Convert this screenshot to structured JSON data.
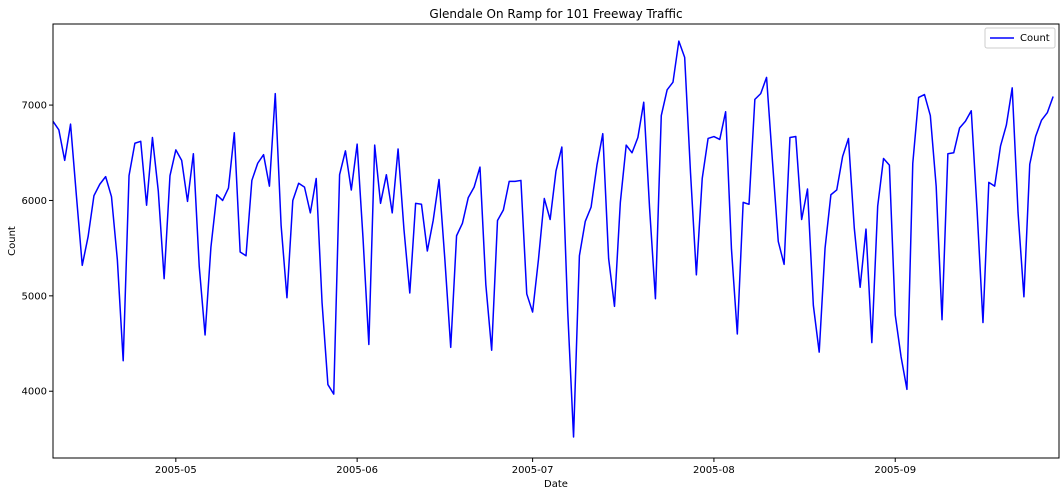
{
  "chart_data": {
    "type": "line",
    "title": "Glendale On Ramp for 101 Freeway Traffic",
    "xlabel": "Date",
    "ylabel": "Count",
    "x_start": "2005-04-10",
    "x_range_days": [
      0,
      172
    ],
    "ylim": [
      3300,
      7850
    ],
    "xticks": [
      {
        "label": "2005-05",
        "day": 21
      },
      {
        "label": "2005-06",
        "day": 52
      },
      {
        "label": "2005-07",
        "day": 82
      },
      {
        "label": "2005-08",
        "day": 113
      },
      {
        "label": "2005-09",
        "day": 144
      }
    ],
    "yticks": [
      {
        "label": "4000",
        "value": 4000
      },
      {
        "label": "5000",
        "value": 5000
      },
      {
        "label": "6000",
        "value": 6000
      },
      {
        "label": "7000",
        "value": 7000
      }
    ],
    "legend": {
      "location": "upper-right",
      "entries": [
        "Count"
      ]
    },
    "series": [
      {
        "name": "Count",
        "color": "#0000ff",
        "values": [
          6830,
          6740,
          6420,
          6800,
          6050,
          5320,
          5620,
          6050,
          6170,
          6250,
          6040,
          5380,
          4320,
          6260,
          6600,
          6620,
          5950,
          6660,
          6100,
          5180,
          6260,
          6530,
          6420,
          5990,
          6490,
          5310,
          4590,
          5510,
          6060,
          6000,
          6130,
          6710,
          5460,
          5420,
          6210,
          6390,
          6480,
          6150,
          7120,
          5740,
          4980,
          6000,
          6180,
          6140,
          5870,
          6230,
          4930,
          4070,
          3970,
          6270,
          6520,
          6110,
          6590,
          5610,
          4490,
          6580,
          5970,
          6270,
          5870,
          6540,
          5700,
          5030,
          5970,
          5960,
          5470,
          5790,
          6220,
          5380,
          4460,
          5630,
          5760,
          6030,
          6140,
          6350,
          5120,
          4430,
          5790,
          5900,
          6200,
          6200,
          6210,
          5020,
          4830,
          5380,
          6020,
          5800,
          6310,
          6560,
          4840,
          3520,
          5420,
          5780,
          5930,
          6370,
          6700,
          5390,
          4890,
          5980,
          6580,
          6500,
          6660,
          7030,
          5920,
          4970,
          6890,
          7160,
          7240,
          7670,
          7500,
          6290,
          5220,
          6230,
          6650,
          6670,
          6640,
          6930,
          5490,
          4600,
          5980,
          5960,
          7060,
          7120,
          7290,
          6420,
          5570,
          5330,
          6660,
          6670,
          5800,
          6120,
          4900,
          4410,
          5500,
          6060,
          6110,
          6460,
          6650,
          5710,
          5090,
          5700,
          4510,
          5940,
          6440,
          6370,
          4800,
          4360,
          4020,
          6390,
          7080,
          7110,
          6890,
          6150,
          4750,
          6490,
          6500,
          6760,
          6830,
          6940,
          5890,
          4720,
          6190,
          6150,
          6570,
          6790,
          7180,
          5870,
          4990,
          6380,
          6670,
          6840,
          6920,
          7090
        ]
      }
    ]
  }
}
